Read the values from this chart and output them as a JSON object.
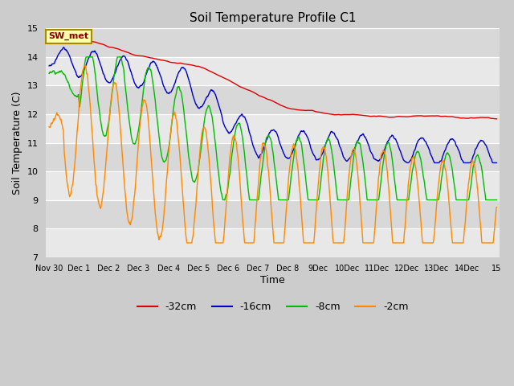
{
  "title": "Soil Temperature Profile C1",
  "xlabel": "Time",
  "ylabel": "Soil Temperature (C)",
  "ylim": [
    7.0,
    15.0
  ],
  "yticks": [
    7.0,
    8.0,
    9.0,
    10.0,
    11.0,
    12.0,
    13.0,
    14.0,
    15.0
  ],
  "legend_labels": [
    "-32cm",
    "-16cm",
    "-8cm",
    "-2cm"
  ],
  "legend_colors": [
    "#dd0000",
    "#0000cc",
    "#00bb00",
    "#ff8800"
  ],
  "annotation_text": "SW_met",
  "fig_bg": "#d8d8d8",
  "plot_bg_light": "#e8e8e8",
  "plot_bg_dark": "#d0d0d0",
  "tick_labels": [
    "Nov 30",
    "Dec 1",
    "Dec 2",
    "Dec 3",
    "Dec 4",
    "Dec 5",
    "Dec 6",
    "Dec 7",
    "Dec 8",
    "9Dec",
    "10Dec",
    "11Dec",
    "12Dec",
    "13Dec",
    "14Dec",
    "15"
  ],
  "n_days": 15,
  "pts_per_day": 96
}
